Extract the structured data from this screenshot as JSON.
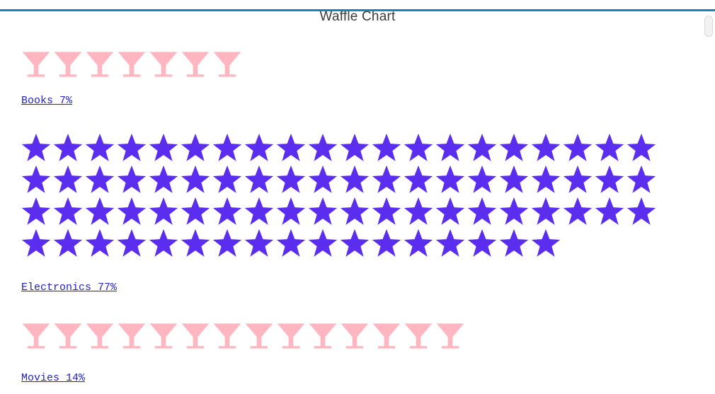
{
  "page": {
    "title": "Waffle Chart"
  },
  "chart_data": {
    "type": "waffle",
    "title": "Waffle Chart",
    "unit": "%",
    "total": 98,
    "icons_per_row": 20,
    "legend_position": "label-below-each-group",
    "grid": "off",
    "categories": [
      {
        "name": "Books",
        "value": 7,
        "label": "Books 7%",
        "icon": "martini-glass-icon",
        "color": "#FFB6C1",
        "rows": [
          7
        ]
      },
      {
        "name": "Electronics",
        "value": 77,
        "label": "Electronics 77%",
        "icon": "star-icon",
        "color": "#5B2EEF",
        "rows": [
          20,
          20,
          20,
          17
        ]
      },
      {
        "name": "Movies",
        "value": 14,
        "label": "Movies 14%",
        "icon": "martini-glass-icon",
        "color": "#FFB6C1",
        "rows": [
          14
        ]
      }
    ]
  },
  "colors": {
    "top_accent_line": "#1E7FC4",
    "title_text": "#3B3B3B",
    "label_link": "#2222CC",
    "star": "#5B2EEF",
    "martini_glass": "#FFB6C1",
    "page_background": "#FFFFFF"
  }
}
